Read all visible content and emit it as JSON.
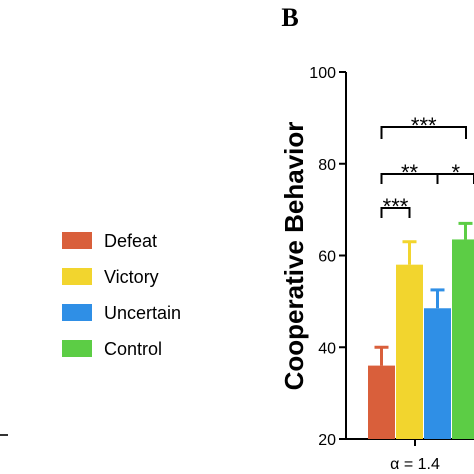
{
  "chart_data": {
    "type": "bar",
    "panel_label": "B",
    "ylabel": "Cooperative Behavior",
    "xlabel": "",
    "ylim": [
      20,
      100
    ],
    "yticks": [
      20,
      40,
      60,
      80,
      100
    ],
    "categories": [
      "α = 1.4"
    ],
    "series": [
      {
        "name": "Defeat",
        "values": [
          36
        ],
        "error": [
          4
        ],
        "color": "#d95f3b"
      },
      {
        "name": "Victory",
        "values": [
          58
        ],
        "error": [
          5
        ],
        "color": "#f2d52e"
      },
      {
        "name": "Uncertain",
        "values": [
          48.5
        ],
        "error": [
          4
        ],
        "color": "#2f8fe6"
      },
      {
        "name": "Control",
        "values": [
          63.5
        ],
        "error": [
          3.5
        ],
        "color": "#5ccd45"
      }
    ],
    "significance": [
      {
        "label": "***",
        "from": "Defeat",
        "to": "Victory"
      },
      {
        "label": "**",
        "from": "Defeat",
        "to": "Uncertain"
      },
      {
        "label": "*",
        "from": "Uncertain",
        "to": "Control"
      },
      {
        "label": "***",
        "from": "Defeat",
        "to": "Control"
      }
    ],
    "legend": "left",
    "grid": false
  }
}
